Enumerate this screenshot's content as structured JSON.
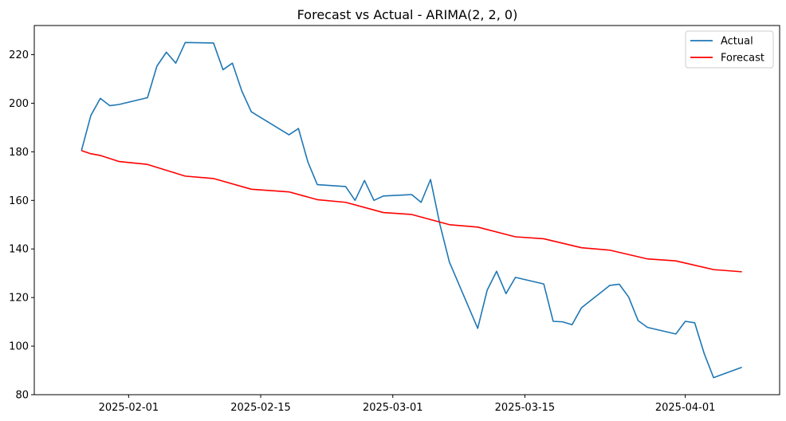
{
  "chart_data": {
    "type": "line",
    "title": "Forecast vs Actual - ARIMA(2, 2, 0)",
    "xlabel": "",
    "ylabel": "",
    "x_range": [
      "2025-01-22",
      "2025-04-11"
    ],
    "ylim": [
      80,
      232
    ],
    "y_ticks": [
      80,
      100,
      120,
      140,
      160,
      180,
      200,
      220
    ],
    "x_ticks": [
      "2025-02-01",
      "2025-02-15",
      "2025-03-01",
      "2025-03-15",
      "2025-04-01"
    ],
    "grid": false,
    "legend_position": "top-right",
    "series": [
      {
        "name": "Actual",
        "color": "#1f77b4",
        "points": [
          [
            "2025-01-27",
            180.5
          ],
          [
            "2025-01-28",
            195.0
          ],
          [
            "2025-01-29",
            202.0
          ],
          [
            "2025-01-30",
            199.0
          ],
          [
            "2025-01-31",
            199.5
          ],
          [
            "2025-02-03",
            202.3
          ],
          [
            "2025-02-04",
            215.3
          ],
          [
            "2025-02-05",
            221.0
          ],
          [
            "2025-02-06",
            216.5
          ],
          [
            "2025-02-07",
            225.0
          ],
          [
            "2025-02-10",
            224.8
          ],
          [
            "2025-02-11",
            213.8
          ],
          [
            "2025-02-12",
            216.5
          ],
          [
            "2025-02-13",
            205.0
          ],
          [
            "2025-02-14",
            196.5
          ],
          [
            "2025-02-18",
            187.0
          ],
          [
            "2025-02-19",
            189.6
          ],
          [
            "2025-02-20",
            175.8
          ],
          [
            "2025-02-21",
            166.5
          ],
          [
            "2025-02-24",
            165.7
          ],
          [
            "2025-02-25",
            160.0
          ],
          [
            "2025-02-26",
            168.2
          ],
          [
            "2025-02-27",
            160.0
          ],
          [
            "2025-02-28",
            161.8
          ],
          [
            "2025-03-03",
            162.4
          ],
          [
            "2025-03-04",
            159.2
          ],
          [
            "2025-03-05",
            168.6
          ],
          [
            "2025-03-06",
            150.0
          ],
          [
            "2025-03-07",
            134.6
          ],
          [
            "2025-03-10",
            107.3
          ],
          [
            "2025-03-11",
            123.0
          ],
          [
            "2025-03-12",
            130.8
          ],
          [
            "2025-03-13",
            121.6
          ],
          [
            "2025-03-14",
            128.3
          ],
          [
            "2025-03-17",
            125.6
          ],
          [
            "2025-03-18",
            110.2
          ],
          [
            "2025-03-19",
            110.0
          ],
          [
            "2025-03-20",
            108.8
          ],
          [
            "2025-03-21",
            115.8
          ],
          [
            "2025-03-24",
            125.0
          ],
          [
            "2025-03-25",
            125.5
          ],
          [
            "2025-03-26",
            120.2
          ],
          [
            "2025-03-27",
            110.5
          ],
          [
            "2025-03-28",
            107.7
          ],
          [
            "2025-03-31",
            105.0
          ],
          [
            "2025-04-01",
            110.2
          ],
          [
            "2025-04-02",
            109.6
          ],
          [
            "2025-04-03",
            97.0
          ],
          [
            "2025-04-04",
            87.0
          ],
          [
            "2025-04-07",
            91.3
          ]
        ]
      },
      {
        "name": "Forecast",
        "color": "#ff0000",
        "points": [
          [
            "2025-01-27",
            180.5
          ],
          [
            "2025-01-28",
            179.2
          ],
          [
            "2025-01-29",
            178.5
          ],
          [
            "2025-01-31",
            176.0
          ],
          [
            "2025-02-03",
            174.8
          ],
          [
            "2025-02-07",
            170.0
          ],
          [
            "2025-02-10",
            169.0
          ],
          [
            "2025-02-14",
            164.6
          ],
          [
            "2025-02-18",
            163.5
          ],
          [
            "2025-02-21",
            160.3
          ],
          [
            "2025-02-24",
            159.2
          ],
          [
            "2025-02-28",
            155.0
          ],
          [
            "2025-03-03",
            154.2
          ],
          [
            "2025-03-07",
            150.0
          ],
          [
            "2025-03-10",
            149.0
          ],
          [
            "2025-03-14",
            145.0
          ],
          [
            "2025-03-17",
            144.2
          ],
          [
            "2025-03-21",
            140.5
          ],
          [
            "2025-03-24",
            139.5
          ],
          [
            "2025-03-28",
            135.9
          ],
          [
            "2025-03-31",
            135.1
          ],
          [
            "2025-04-04",
            131.5
          ],
          [
            "2025-04-07",
            130.6
          ]
        ]
      }
    ]
  }
}
